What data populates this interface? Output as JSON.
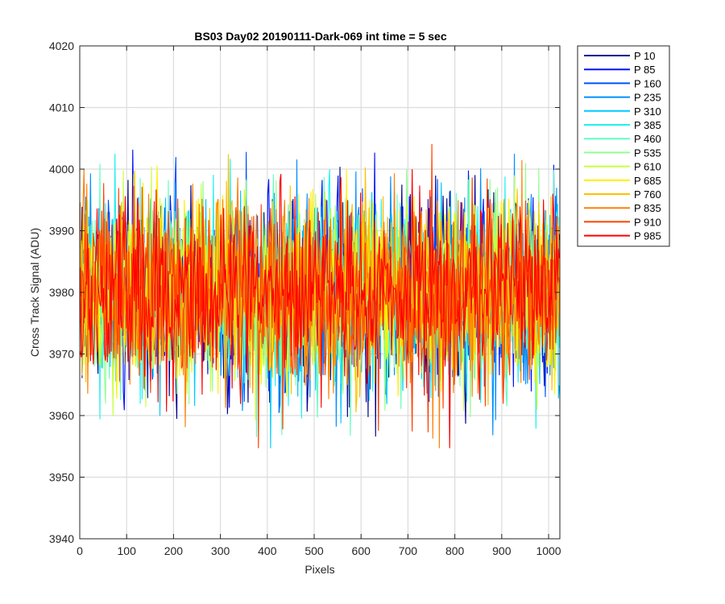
{
  "chart_data": {
    "type": "line",
    "title": "BS03 Day02 20190111-Dark-069 int time = 5 sec",
    "xlabel": "Pixels",
    "ylabel": "Cross Track Signal (ADU)",
    "xlim": [
      0,
      1024
    ],
    "ylim": [
      3940,
      4020
    ],
    "xticks": [
      0,
      100,
      200,
      300,
      400,
      500,
      600,
      700,
      800,
      900,
      1000
    ],
    "yticks": [
      3940,
      3950,
      3960,
      3970,
      3980,
      3990,
      4000,
      4010,
      4020
    ],
    "grid": true,
    "legend_position": "outside-top-right",
    "noise": {
      "mean": 3980,
      "spread": 12,
      "x_start": 1,
      "x_end": 1024,
      "x_step": 2
    },
    "series": [
      {
        "name": "P 10",
        "color": "#00008F"
      },
      {
        "name": "P 85",
        "color": "#0010FF"
      },
      {
        "name": "P 160",
        "color": "#0050FF"
      },
      {
        "name": "P 235",
        "color": "#0090FF"
      },
      {
        "name": "P 310",
        "color": "#00C8FF"
      },
      {
        "name": "P 385",
        "color": "#20F0F0"
      },
      {
        "name": "P 460",
        "color": "#60FFC0"
      },
      {
        "name": "P 535",
        "color": "#90FF90"
      },
      {
        "name": "P 610",
        "color": "#C8FF40"
      },
      {
        "name": "P 685",
        "color": "#FFF000"
      },
      {
        "name": "P 760",
        "color": "#FFC000"
      },
      {
        "name": "P 835",
        "color": "#FF8000"
      },
      {
        "name": "P 910",
        "color": "#FF4000"
      },
      {
        "name": "P 985",
        "color": "#FF0000"
      }
    ]
  }
}
